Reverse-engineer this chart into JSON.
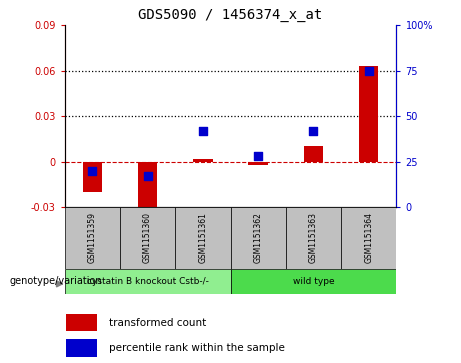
{
  "title": "GDS5090 / 1456374_x_at",
  "samples": [
    "GSM1151359",
    "GSM1151360",
    "GSM1151361",
    "GSM1151362",
    "GSM1151363",
    "GSM1151364"
  ],
  "transformed_count": [
    -0.02,
    -0.032,
    0.002,
    -0.002,
    0.01,
    0.063
  ],
  "percentile_rank": [
    20,
    17,
    42,
    28,
    42,
    75
  ],
  "ylim_left": [
    -0.03,
    0.09
  ],
  "ylim_right": [
    0,
    100
  ],
  "yticks_left": [
    -0.03,
    0.0,
    0.03,
    0.06,
    0.09
  ],
  "yticks_right": [
    0,
    25,
    50,
    75,
    100
  ],
  "ytick_labels_left": [
    "-0.03",
    "0",
    "0.03",
    "0.06",
    "0.09"
  ],
  "ytick_labels_right": [
    "0",
    "25",
    "50",
    "75",
    "100%"
  ],
  "dotted_lines": [
    0.03,
    0.06
  ],
  "groups": [
    {
      "label": "cystatin B knockout Cstb-/-",
      "start": 0,
      "end": 3,
      "color": "#90EE90"
    },
    {
      "label": "wild type",
      "start": 3,
      "end": 6,
      "color": "#4CDB4C"
    }
  ],
  "bar_color": "#CC0000",
  "dot_color": "#0000CC",
  "bar_width": 0.35,
  "dot_size": 40,
  "legend_bar_label": "transformed count",
  "legend_dot_label": "percentile rank within the sample",
  "xlabel_area_label": "genotype/variation",
  "sample_label_bg": "#C0C0C0",
  "zero_line_color": "#CC0000"
}
